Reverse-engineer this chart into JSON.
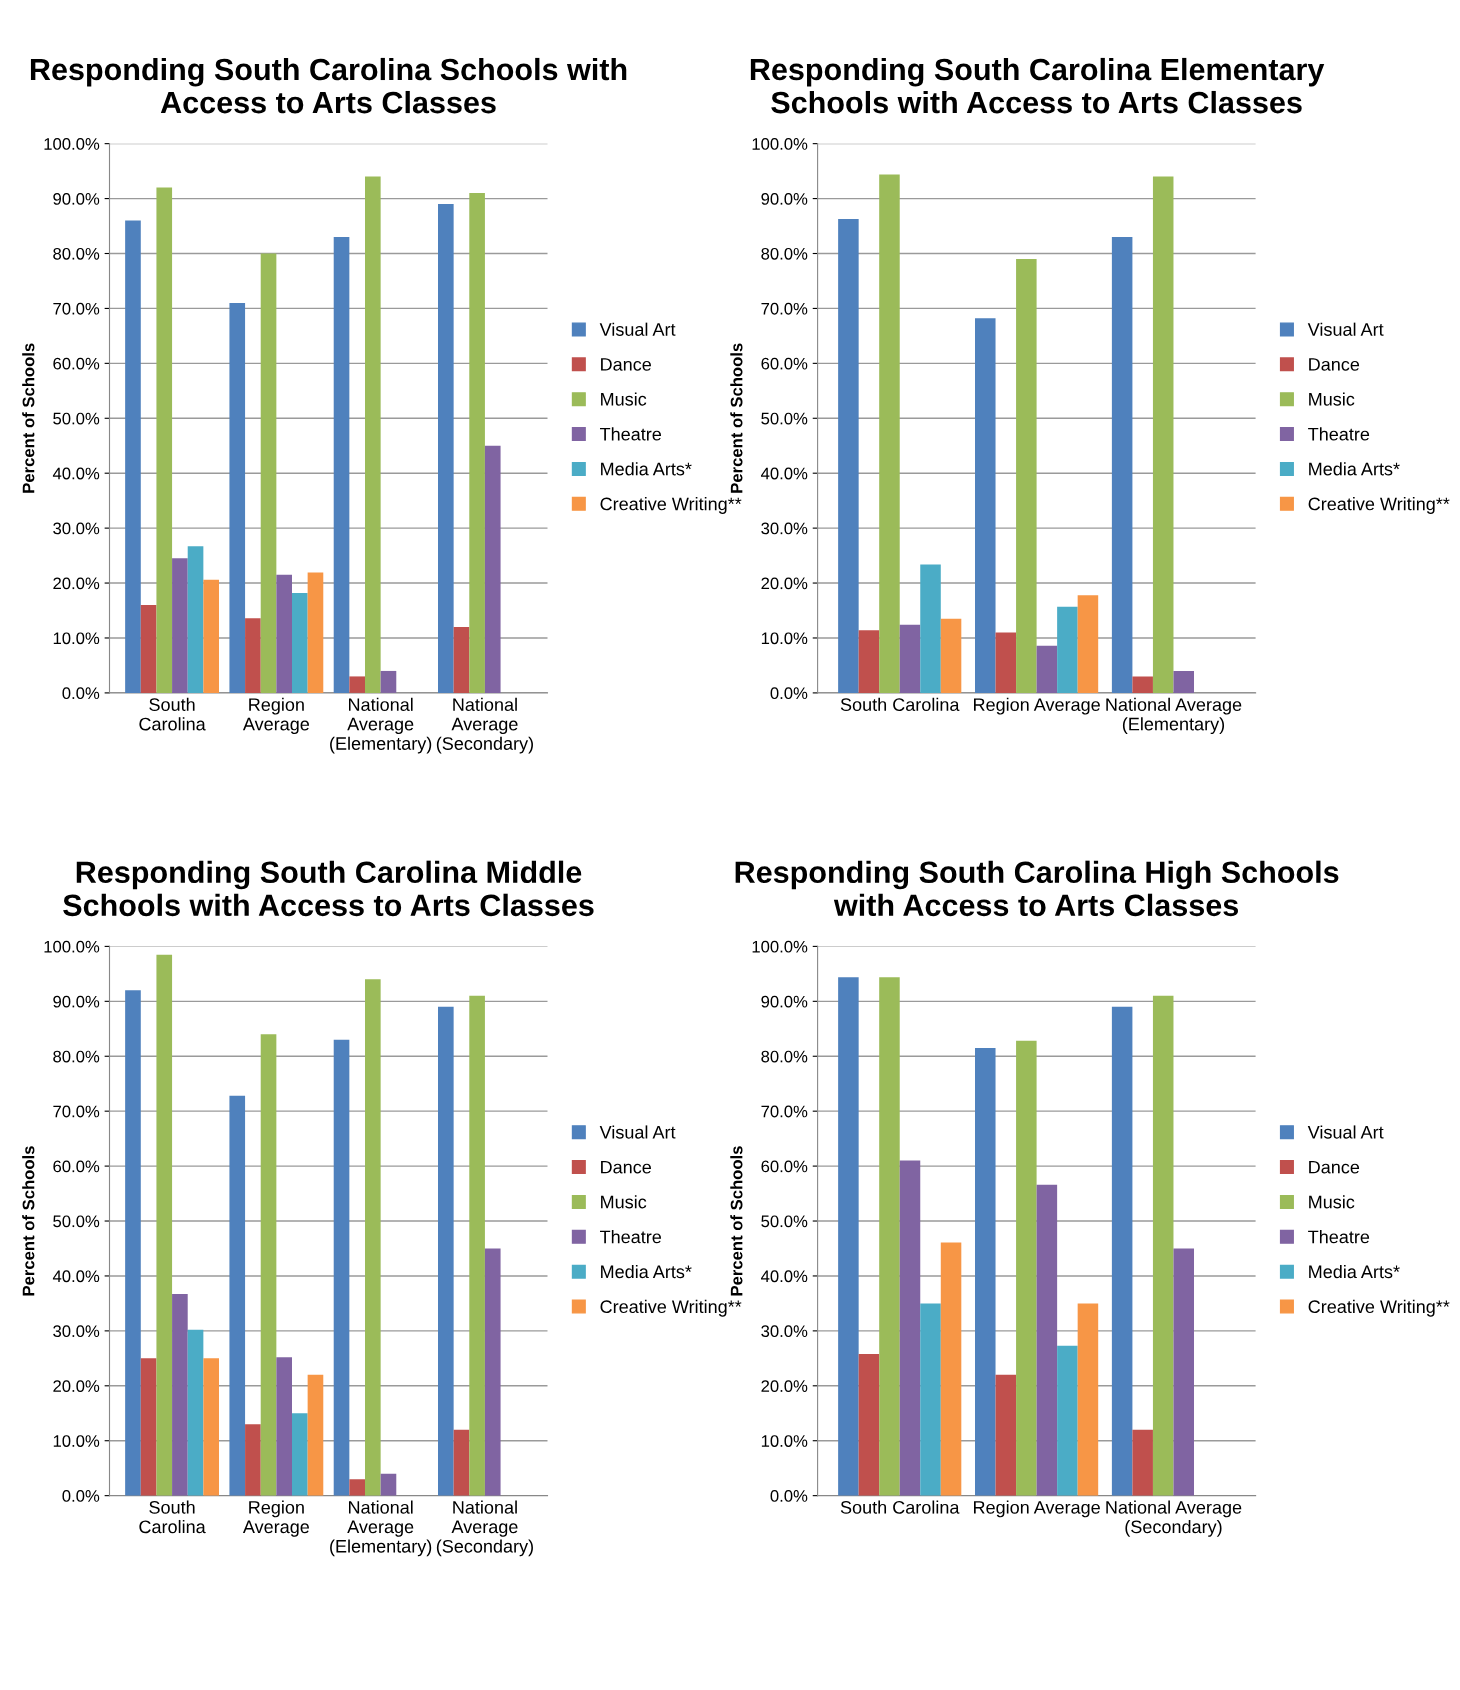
{
  "chart_data": [
    {
      "type": "bar",
      "title": "Responding South Carolina Schools with\nAccess to Arts Classes",
      "ylabel": "Percent of Schools",
      "categories": [
        "South\nCarolina",
        "Region\nAverage",
        "National\nAverage\n(Elementary)",
        "National\nAverage\n(Secondary)"
      ],
      "series": [
        {
          "name": "Visual Art",
          "color": "#4f81bd",
          "values": [
            86,
            71,
            83,
            89
          ]
        },
        {
          "name": "Dance",
          "color": "#c0504d",
          "values": [
            16,
            13.6,
            3,
            12
          ]
        },
        {
          "name": "Music",
          "color": "#9bbb59",
          "values": [
            92,
            80,
            94,
            91
          ]
        },
        {
          "name": "Theatre",
          "color": "#8064a2",
          "values": [
            24.5,
            21.5,
            4,
            45
          ]
        },
        {
          "name": "Media Arts*",
          "color": "#4bacc6",
          "values": [
            26.7,
            18.2,
            null,
            null
          ]
        },
        {
          "name": "Creative Writing**",
          "color": "#f79646",
          "values": [
            20.6,
            21.9,
            null,
            null
          ]
        }
      ],
      "ylim": [
        0,
        100
      ],
      "yticks": [
        {
          "value": 0,
          "label": "0.0%"
        },
        {
          "value": 10,
          "label": "10.0%"
        },
        {
          "value": 20,
          "label": "20.0%"
        },
        {
          "value": 30,
          "label": "30.0%"
        },
        {
          "value": 40,
          "label": "40.0%"
        },
        {
          "value": 50,
          "label": "50.0%"
        },
        {
          "value": 60,
          "label": "60.0%"
        },
        {
          "value": 70,
          "label": "70.0%"
        },
        {
          "value": 80,
          "label": "80.0%"
        },
        {
          "value": 90,
          "label": "90.0%"
        },
        {
          "value": 100,
          "label": "100.0%"
        }
      ],
      "grid": "y",
      "legend": "right"
    },
    {
      "type": "bar",
      "title": "Responding South Carolina Elementary\nSchools with Access to Arts Classes",
      "ylabel": "Percent of Schools",
      "categories": [
        "South Carolina",
        "Region Average",
        "National Average\n(Elementary)"
      ],
      "series": [
        {
          "name": "Visual Art",
          "color": "#4f81bd",
          "values": [
            86.3,
            68.2,
            83
          ]
        },
        {
          "name": "Dance",
          "color": "#c0504d",
          "values": [
            11.4,
            11,
            3
          ]
        },
        {
          "name": "Music",
          "color": "#9bbb59",
          "values": [
            94.4,
            79,
            94
          ]
        },
        {
          "name": "Theatre",
          "color": "#8064a2",
          "values": [
            12.4,
            8.6,
            4
          ]
        },
        {
          "name": "Media Arts*",
          "color": "#4bacc6",
          "values": [
            23.4,
            15.7,
            null
          ]
        },
        {
          "name": "Creative Writing**",
          "color": "#f79646",
          "values": [
            13.5,
            17.8,
            null
          ]
        }
      ],
      "ylim": [
        0,
        100
      ],
      "yticks": [
        {
          "value": 0,
          "label": "0.0%"
        },
        {
          "value": 10,
          "label": "10.0%"
        },
        {
          "value": 20,
          "label": "20.0%"
        },
        {
          "value": 30,
          "label": "30.0%"
        },
        {
          "value": 40,
          "label": "40.0%"
        },
        {
          "value": 50,
          "label": "50.0%"
        },
        {
          "value": 60,
          "label": "60.0%"
        },
        {
          "value": 70,
          "label": "70.0%"
        },
        {
          "value": 80,
          "label": "80.0%"
        },
        {
          "value": 90,
          "label": "90.0%"
        },
        {
          "value": 100,
          "label": "100.0%"
        }
      ],
      "grid": "y",
      "legend": "right"
    },
    {
      "type": "bar",
      "title": "Responding South Carolina Middle\nSchools with Access to Arts Classes",
      "ylabel": "Percent of Schools",
      "categories": [
        "South\nCarolina",
        "Region\nAverage",
        "National\nAverage\n(Elementary)",
        "National\nAverage\n(Secondary)"
      ],
      "series": [
        {
          "name": "Visual Art",
          "color": "#4f81bd",
          "values": [
            92,
            72.8,
            83,
            89
          ]
        },
        {
          "name": "Dance",
          "color": "#c0504d",
          "values": [
            25,
            13,
            3,
            12
          ]
        },
        {
          "name": "Music",
          "color": "#9bbb59",
          "values": [
            98.5,
            84,
            94,
            91
          ]
        },
        {
          "name": "Theatre",
          "color": "#8064a2",
          "values": [
            36.7,
            25.2,
            4,
            45
          ]
        },
        {
          "name": "Media Arts*",
          "color": "#4bacc6",
          "values": [
            30.2,
            15,
            null,
            null
          ]
        },
        {
          "name": "Creative Writing**",
          "color": "#f79646",
          "values": [
            25,
            22,
            null,
            null
          ]
        }
      ],
      "ylim": [
        0,
        100
      ],
      "yticks": [
        {
          "value": 0,
          "label": "0.0%"
        },
        {
          "value": 10,
          "label": "10.0%"
        },
        {
          "value": 20,
          "label": "20.0%"
        },
        {
          "value": 30,
          "label": "30.0%"
        },
        {
          "value": 40,
          "label": "40.0%"
        },
        {
          "value": 50,
          "label": "50.0%"
        },
        {
          "value": 60,
          "label": "60.0%"
        },
        {
          "value": 70,
          "label": "70.0%"
        },
        {
          "value": 80,
          "label": "80.0%"
        },
        {
          "value": 90,
          "label": "90.0%"
        },
        {
          "value": 100,
          "label": "100.0%"
        }
      ],
      "grid": "y",
      "legend": "right"
    },
    {
      "type": "bar",
      "title": "Responding South Carolina High Schools\nwith Access to Arts Classes",
      "ylabel": "Percent of Schools",
      "categories": [
        "South Carolina",
        "Region Average",
        "National Average\n(Secondary)"
      ],
      "series": [
        {
          "name": "Visual Art",
          "color": "#4f81bd",
          "values": [
            94.4,
            81.5,
            89
          ]
        },
        {
          "name": "Dance",
          "color": "#c0504d",
          "values": [
            25.8,
            22,
            12
          ]
        },
        {
          "name": "Music",
          "color": "#9bbb59",
          "values": [
            94.4,
            82.8,
            91
          ]
        },
        {
          "name": "Theatre",
          "color": "#8064a2",
          "values": [
            61,
            56.6,
            45
          ]
        },
        {
          "name": "Media Arts*",
          "color": "#4bacc6",
          "values": [
            35,
            27.3,
            null
          ]
        },
        {
          "name": "Creative Writing**",
          "color": "#f79646",
          "values": [
            46.1,
            35,
            null
          ]
        }
      ],
      "ylim": [
        0,
        100
      ],
      "yticks": [
        {
          "value": 0,
          "label": "0.0%"
        },
        {
          "value": 10,
          "label": "10.0%"
        },
        {
          "value": 20,
          "label": "20.0%"
        },
        {
          "value": 30,
          "label": "30.0%"
        },
        {
          "value": 40,
          "label": "40.0%"
        },
        {
          "value": 50,
          "label": "50.0%"
        },
        {
          "value": 60,
          "label": "60.0%"
        },
        {
          "value": 70,
          "label": "70.0%"
        },
        {
          "value": 80,
          "label": "80.0%"
        },
        {
          "value": 90,
          "label": "90.0%"
        },
        {
          "value": 100,
          "label": "100.0%"
        }
      ],
      "grid": "y",
      "legend": "right"
    }
  ]
}
